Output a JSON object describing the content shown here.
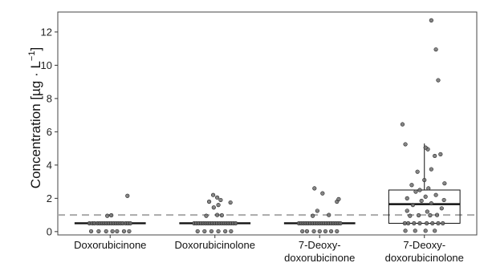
{
  "chart_data": {
    "type": "box",
    "title": "",
    "xlabel": "",
    "ylabel": "Concentration [µg · L",
    "ylabel_sup": "−1",
    "ylabel_tail": "]",
    "ylim": [
      -0.2,
      13.2
    ],
    "yticks": [
      0,
      2,
      4,
      6,
      8,
      10,
      12
    ],
    "categories": [
      {
        "lines": [
          "Doxorubicinone"
        ]
      },
      {
        "lines": [
          "Doxorubicinolone"
        ]
      },
      {
        "lines": [
          "7-Deoxy-",
          "doxorubicinone"
        ]
      },
      {
        "lines": [
          "7-Deoxy-",
          "doxorubicinolone"
        ]
      }
    ],
    "reference_line": 1,
    "colors": {
      "point_fill": "#707070",
      "point_stroke": "#222222",
      "box_stroke": "#111111",
      "reference_line": "#aaaaaa",
      "panel_border": "#444444",
      "axis": "#333333"
    },
    "series": [
      {
        "box": {
          "min": 0.5,
          "q1": 0.5,
          "median": 0.5,
          "q3": 0.5,
          "max": 0.5
        },
        "points": [
          [
            -0.36,
            0.5
          ],
          [
            -0.31,
            0.5
          ],
          [
            -0.27,
            0.5
          ],
          [
            -0.22,
            0.5
          ],
          [
            -0.18,
            0.5
          ],
          [
            -0.14,
            0.5
          ],
          [
            -0.1,
            0.5
          ],
          [
            -0.06,
            0.5
          ],
          [
            -0.02,
            0.5
          ],
          [
            0.02,
            0.5
          ],
          [
            0.06,
            0.5
          ],
          [
            0.1,
            0.5
          ],
          [
            0.14,
            0.5
          ],
          [
            0.18,
            0.5
          ],
          [
            0.22,
            0.5
          ],
          [
            0.27,
            0.5
          ],
          [
            0.31,
            0.5
          ],
          [
            0.35,
            0.5
          ],
          [
            -0.33,
            0.02
          ],
          [
            -0.2,
            0.02
          ],
          [
            -0.07,
            0.02
          ],
          [
            0.04,
            0.02
          ],
          [
            0.12,
            0.02
          ],
          [
            0.24,
            0.02
          ],
          [
            0.33,
            0.02
          ],
          [
            0.02,
            0.98
          ],
          [
            -0.05,
            0.95
          ],
          [
            0.3,
            2.15
          ]
        ]
      },
      {
        "box": {
          "min": 0.5,
          "q1": 0.5,
          "median": 0.5,
          "q3": 0.5,
          "max": 0.5
        },
        "points": [
          [
            -0.36,
            0.5
          ],
          [
            -0.32,
            0.5
          ],
          [
            -0.28,
            0.5
          ],
          [
            -0.24,
            0.5
          ],
          [
            -0.2,
            0.5
          ],
          [
            -0.16,
            0.5
          ],
          [
            -0.12,
            0.5
          ],
          [
            -0.08,
            0.5
          ],
          [
            -0.04,
            0.5
          ],
          [
            0.0,
            0.5
          ],
          [
            0.04,
            0.5
          ],
          [
            0.08,
            0.5
          ],
          [
            0.12,
            0.5
          ],
          [
            0.16,
            0.5
          ],
          [
            0.2,
            0.5
          ],
          [
            0.24,
            0.5
          ],
          [
            0.28,
            0.5
          ],
          [
            0.32,
            0.5
          ],
          [
            0.36,
            0.5
          ],
          [
            -0.3,
            0.02
          ],
          [
            -0.18,
            0.02
          ],
          [
            -0.06,
            0.02
          ],
          [
            0.06,
            0.02
          ],
          [
            0.18,
            0.02
          ],
          [
            0.28,
            0.02
          ],
          [
            -0.15,
            0.95
          ],
          [
            0.04,
            1.0
          ],
          [
            0.12,
            0.98
          ],
          [
            -0.02,
            1.45
          ],
          [
            0.06,
            1.6
          ],
          [
            0.27,
            1.75
          ],
          [
            -0.1,
            1.8
          ],
          [
            0.1,
            1.9
          ],
          [
            0.04,
            2.05
          ],
          [
            -0.03,
            2.2
          ]
        ]
      },
      {
        "box": {
          "min": 0.5,
          "q1": 0.5,
          "median": 0.5,
          "q3": 0.5,
          "max": 0.5
        },
        "points": [
          [
            -0.36,
            0.5
          ],
          [
            -0.32,
            0.5
          ],
          [
            -0.28,
            0.5
          ],
          [
            -0.24,
            0.5
          ],
          [
            -0.2,
            0.5
          ],
          [
            -0.16,
            0.5
          ],
          [
            -0.12,
            0.5
          ],
          [
            -0.08,
            0.5
          ],
          [
            -0.04,
            0.5
          ],
          [
            0.0,
            0.5
          ],
          [
            0.04,
            0.5
          ],
          [
            0.08,
            0.5
          ],
          [
            0.12,
            0.5
          ],
          [
            0.16,
            0.5
          ],
          [
            0.2,
            0.5
          ],
          [
            0.24,
            0.5
          ],
          [
            0.28,
            0.5
          ],
          [
            0.32,
            0.5
          ],
          [
            0.36,
            0.5
          ],
          [
            -0.3,
            0.02
          ],
          [
            -0.22,
            0.02
          ],
          [
            -0.1,
            0.02
          ],
          [
            0.0,
            0.02
          ],
          [
            0.1,
            0.02
          ],
          [
            0.2,
            0.02
          ],
          [
            0.3,
            0.02
          ],
          [
            -0.12,
            0.95
          ],
          [
            0.16,
            1.0
          ],
          [
            -0.04,
            1.25
          ],
          [
            0.3,
            1.8
          ],
          [
            0.33,
            1.95
          ],
          [
            0.05,
            2.3
          ],
          [
            -0.09,
            2.6
          ]
        ]
      },
      {
        "box": {
          "min": 0.5,
          "q1": 0.5,
          "median": 1.65,
          "q3": 2.5,
          "max": 5.3
        },
        "points": [
          [
            -0.34,
            0.5
          ],
          [
            -0.28,
            0.5
          ],
          [
            -0.18,
            0.5
          ],
          [
            -0.08,
            0.5
          ],
          [
            0.04,
            0.5
          ],
          [
            0.14,
            0.5
          ],
          [
            0.24,
            0.5
          ],
          [
            0.32,
            0.5
          ],
          [
            -0.33,
            0.05
          ],
          [
            -0.16,
            0.05
          ],
          [
            0.02,
            0.05
          ],
          [
            0.18,
            0.05
          ],
          [
            -0.25,
            0.95
          ],
          [
            -0.1,
            0.98
          ],
          [
            0.1,
            0.98
          ],
          [
            0.22,
            1.0
          ],
          [
            0.05,
            1.2
          ],
          [
            -0.3,
            1.25
          ],
          [
            0.3,
            1.4
          ],
          [
            -0.2,
            1.6
          ],
          [
            0.12,
            1.7
          ],
          [
            -0.05,
            1.85
          ],
          [
            0.34,
            1.9
          ],
          [
            -0.3,
            2.0
          ],
          [
            0.02,
            2.1
          ],
          [
            0.2,
            2.2
          ],
          [
            -0.15,
            2.4
          ],
          [
            -0.08,
            2.5
          ],
          [
            0.07,
            2.6
          ],
          [
            -0.22,
            2.8
          ],
          [
            0.35,
            2.9
          ],
          [
            0.0,
            3.1
          ],
          [
            -0.12,
            3.6
          ],
          [
            0.12,
            3.75
          ],
          [
            0.18,
            4.55
          ],
          [
            0.28,
            4.65
          ],
          [
            -0.33,
            5.25
          ],
          [
            0.06,
            4.95
          ],
          [
            0.02,
            5.05
          ],
          [
            -0.38,
            6.45
          ],
          [
            0.24,
            9.1
          ],
          [
            0.2,
            10.95
          ],
          [
            0.12,
            12.7
          ]
        ]
      }
    ]
  }
}
